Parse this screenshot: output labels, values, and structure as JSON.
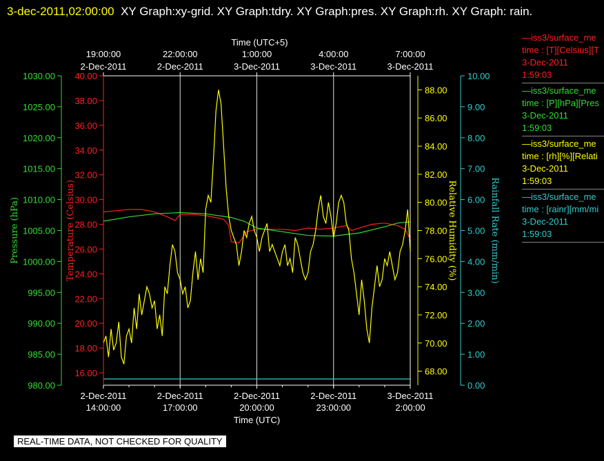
{
  "header": {
    "timestamp": "3-dec-2011,02:00:00",
    "title": "XY Graph:xy-grid.  XY Graph:tdry.  XY Graph:pres.  XY Graph:rh.  XY Graph: rain."
  },
  "legend": [
    {
      "name": "—iss3/surface_me",
      "units": "time : [T][Celsius][T",
      "date": "3-Dec-2011",
      "time": "1:59:03",
      "color": "#ff2020"
    },
    {
      "name": "—iss3/surface_me",
      "units": "time : [P][hPa][Pres",
      "date": "3-Dec-2011",
      "time": "1:59:03",
      "color": "#33dd33"
    },
    {
      "name": "—iss3/surface_me",
      "units": "time : [rh][%][Relati",
      "date": "3-Dec-2011",
      "time": "1:59:03",
      "color": "#ffff00"
    },
    {
      "name": "—iss3/surface_me",
      "units": "time : [rainr][mm/mi",
      "date": "3-Dec-2011",
      "time": "1:59:03",
      "color": "#33cccc"
    }
  ],
  "quality_note": "REAL-TIME DATA, NOT CHECKED FOR QUALITY",
  "chart_data": {
    "type": "line",
    "title": "XY Graph",
    "x_top_label": "Time (UTC+5)",
    "x_top_ticks": [
      {
        "time": "19:00:00",
        "date": "2-Dec-2011"
      },
      {
        "time": "22:00:00",
        "date": "2-Dec-2011"
      },
      {
        "time": "1:00:00",
        "date": "3-Dec-2011"
      },
      {
        "time": "4:00:00",
        "date": "3-Dec-2011"
      },
      {
        "time": "7:00:00",
        "date": "3-Dec-2011"
      }
    ],
    "xlabel": "Time (UTC)",
    "x_ticks": [
      {
        "date": "2-Dec-2011",
        "time": "14:00:00",
        "hours": 0
      },
      {
        "date": "2-Dec-2011",
        "time": "17:00:00",
        "hours": 3
      },
      {
        "date": "2-Dec-2011",
        "time": "20:00:00",
        "hours": 6
      },
      {
        "date": "2-Dec-2011",
        "time": "23:00:00",
        "hours": 9
      },
      {
        "date": "3-Dec-2011",
        "time": "2:00:00",
        "hours": 12
      }
    ],
    "xlim_hours": [
      0,
      12
    ],
    "grid": true,
    "axes": {
      "pressure": {
        "label": "Pressure (hPa)",
        "color": "#33dd33",
        "ylim": [
          980,
          1030
        ],
        "ticks": [
          "980.00",
          "985.00",
          "990.00",
          "995.00",
          "1000.00",
          "1005.00",
          "1010.00",
          "1015.00",
          "1020.00",
          "1025.00",
          "1030.00"
        ]
      },
      "temperature": {
        "label": "Temperature (Celsius)",
        "color": "#ff2020",
        "ylim": [
          15,
          40
        ],
        "ticks": [
          "16.00",
          "18.00",
          "20.00",
          "22.00",
          "24.00",
          "26.00",
          "28.00",
          "30.00",
          "32.00",
          "34.00",
          "36.00",
          "38.00",
          "40.00"
        ]
      },
      "humidity": {
        "label": "Relative Humidity (%)",
        "color": "#ffff00",
        "ylim": [
          67,
          89
        ],
        "ticks": [
          "68.00",
          "70.00",
          "72.00",
          "74.00",
          "76.00",
          "78.00",
          "80.00",
          "82.00",
          "84.00",
          "86.00",
          "88.00"
        ]
      },
      "rain": {
        "label": "Rainfall Rate (mm/min)",
        "color": "#33cccc",
        "ylim": [
          0,
          10
        ],
        "ticks": [
          "0.00",
          "1.00",
          "2.00",
          "3.00",
          "4.00",
          "5.00",
          "6.00",
          "7.00",
          "8.00",
          "9.00",
          "10.00"
        ]
      }
    },
    "series": [
      {
        "name": "Temperature",
        "axis": "temperature",
        "color": "#ff2020",
        "x": [
          0,
          0.5,
          1,
          1.5,
          2,
          2.5,
          2.8,
          3,
          3.5,
          4,
          4.5,
          4.7,
          4.9,
          5,
          5.3,
          5.6,
          6,
          6.5,
          7,
          7.5,
          8,
          8.5,
          9,
          9.5,
          9.7,
          10,
          10.5,
          11,
          11.5,
          11.8,
          12
        ],
        "y": [
          29.0,
          29.1,
          29.2,
          29.2,
          29.0,
          28.6,
          28.3,
          28.8,
          28.8,
          28.7,
          28.5,
          28.4,
          27.9,
          26.6,
          26.5,
          27.4,
          27.6,
          27.6,
          27.6,
          27.5,
          27.7,
          27.6,
          27.7,
          27.9,
          27.5,
          27.7,
          28.0,
          28.1,
          27.9,
          27.6,
          26.8
        ]
      },
      {
        "name": "Pressure",
        "axis": "pressure",
        "color": "#33dd33",
        "x": [
          0,
          1,
          2,
          3,
          4,
          5,
          5.5,
          6,
          7,
          8,
          9,
          10,
          11,
          11.5,
          12
        ],
        "y": [
          1006.5,
          1007.2,
          1007.7,
          1007.9,
          1007.7,
          1007.1,
          1006.5,
          1005.4,
          1004.8,
          1004.2,
          1004.1,
          1004.6,
          1005.6,
          1006.2,
          1006.4
        ]
      },
      {
        "name": "Relative Humidity",
        "axis": "humidity",
        "color": "#ffff00",
        "x": [
          0,
          0.1,
          0.2,
          0.3,
          0.4,
          0.5,
          0.6,
          0.7,
          0.8,
          0.9,
          1.0,
          1.1,
          1.2,
          1.3,
          1.4,
          1.5,
          1.6,
          1.7,
          1.8,
          1.9,
          2.0,
          2.1,
          2.2,
          2.3,
          2.4,
          2.5,
          2.6,
          2.7,
          2.8,
          2.9,
          3.0,
          3.1,
          3.2,
          3.3,
          3.4,
          3.5,
          3.6,
          3.7,
          3.8,
          3.9,
          4.0,
          4.1,
          4.2,
          4.3,
          4.4,
          4.5,
          4.6,
          4.7,
          4.8,
          4.9,
          5.0,
          5.1,
          5.2,
          5.3,
          5.4,
          5.5,
          5.6,
          5.7,
          5.8,
          5.9,
          6.0,
          6.1,
          6.2,
          6.3,
          6.4,
          6.5,
          6.6,
          6.7,
          6.8,
          6.9,
          7.0,
          7.1,
          7.2,
          7.3,
          7.4,
          7.5,
          7.6,
          7.7,
          7.8,
          7.9,
          8.0,
          8.1,
          8.2,
          8.3,
          8.4,
          8.5,
          8.6,
          8.7,
          8.8,
          8.9,
          9.0,
          9.1,
          9.2,
          9.3,
          9.4,
          9.5,
          9.6,
          9.7,
          9.8,
          9.9,
          10.0,
          10.1,
          10.2,
          10.3,
          10.4,
          10.5,
          10.6,
          10.7,
          10.8,
          10.9,
          11.0,
          11.1,
          11.2,
          11.3,
          11.4,
          11.5,
          11.6,
          11.7,
          11.8,
          11.9,
          12.0
        ],
        "y": [
          70.0,
          70.5,
          69.0,
          71.0,
          69.5,
          70.0,
          71.5,
          69.0,
          68.5,
          70.5,
          71.0,
          70.0,
          72.5,
          71.0,
          73.5,
          72.0,
          73.0,
          74.0,
          73.5,
          72.5,
          73.0,
          71.0,
          72.0,
          70.5,
          74.0,
          73.5,
          75.5,
          77.0,
          76.5,
          75.0,
          74.5,
          73.5,
          74.0,
          72.5,
          73.0,
          75.0,
          76.5,
          74.5,
          76.0,
          75.0,
          79.5,
          80.5,
          80.0,
          83.0,
          86.5,
          88.0,
          87.0,
          84.0,
          81.0,
          79.0,
          78.0,
          77.5,
          77.0,
          75.5,
          76.5,
          78.0,
          77.5,
          78.5,
          79.0,
          78.0,
          77.5,
          76.5,
          77.5,
          78.0,
          78.5,
          76.5,
          77.0,
          76.5,
          76.0,
          75.5,
          76.5,
          77.0,
          75.5,
          76.0,
          75.0,
          77.5,
          77.0,
          76.0,
          75.0,
          74.5,
          75.0,
          76.5,
          77.0,
          78.0,
          79.5,
          80.5,
          79.0,
          78.5,
          80.0,
          79.0,
          77.5,
          78.5,
          80.0,
          80.5,
          80.0,
          78.5,
          78.0,
          76.0,
          75.0,
          73.5,
          72.0,
          74.5,
          73.0,
          71.0,
          70.0,
          72.5,
          74.0,
          75.5,
          74.0,
          74.5,
          76.0,
          75.5,
          76.5,
          75.5,
          74.5,
          75.0,
          76.5,
          77.0,
          78.0,
          79.5,
          76.5
        ]
      },
      {
        "name": "Rainfall Rate",
        "axis": "rain",
        "color": "#33cccc",
        "x": [
          0,
          12
        ],
        "y": [
          0.0,
          0.0
        ]
      }
    ]
  }
}
